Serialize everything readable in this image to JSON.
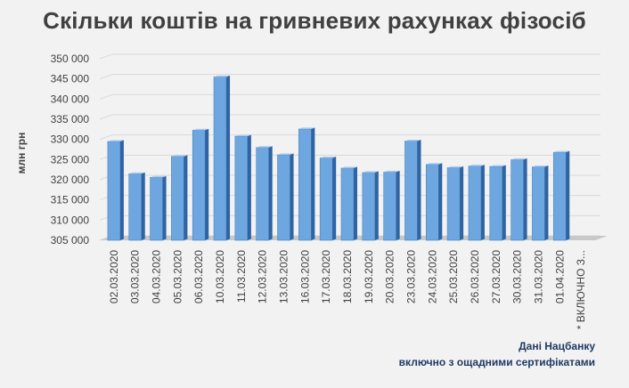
{
  "title": "Скільки коштів на гривневих рахунках фізосіб",
  "notes": {
    "source": "Дані Нацбанку",
    "comment": "включно з ощадними сертифікатами"
  },
  "chart_data": {
    "type": "bar",
    "title": "Скільки коштів на гривневих рахунках фізосіб",
    "xlabel": "",
    "ylabel": "млн грн",
    "ylim": [
      305000,
      350000
    ],
    "yticks": [
      305000,
      310000,
      315000,
      320000,
      325000,
      330000,
      335000,
      340000,
      345000,
      350000
    ],
    "ytick_labels": [
      "305 000",
      "310 000",
      "315 000",
      "320 000",
      "325 000",
      "330 000",
      "335 000",
      "340 000",
      "345 000",
      "350 000"
    ],
    "grid": true,
    "legend": "none",
    "style": "3d-clustered-column",
    "colors": {
      "bar_front": "#6ea6e0",
      "bar_side": "#2f64a3",
      "bar_top": "#a9cbef",
      "grid": "#d9d9d9",
      "floor": "#c8c8c8",
      "tick_text": "#404040"
    },
    "categories": [
      "02.03.2020",
      "03.03.2020",
      "04.03.2020",
      "05.03.2020",
      "06.03.2020",
      "10.03.2020",
      "11.03.2020",
      "12.03.2020",
      "13.03.2020",
      "16.03.2020",
      "17.03.2020",
      "18.03.2020",
      "19.03.2020",
      "20.03.2020",
      "23.03.2020",
      "24.03.2020",
      "25.03.2020",
      "26.03.2020",
      "27.03.2020",
      "30.03.2020",
      "31.03.2020",
      "01.04.2020",
      "* ВКЛЮЧНО З..."
    ],
    "values": [
      329500,
      321500,
      320600,
      325800,
      332300,
      345500,
      330800,
      328000,
      326200,
      332600,
      325400,
      322900,
      321800,
      321900,
      329600,
      323800,
      323000,
      323400,
      323300,
      325000,
      323200,
      326800,
      null
    ]
  }
}
